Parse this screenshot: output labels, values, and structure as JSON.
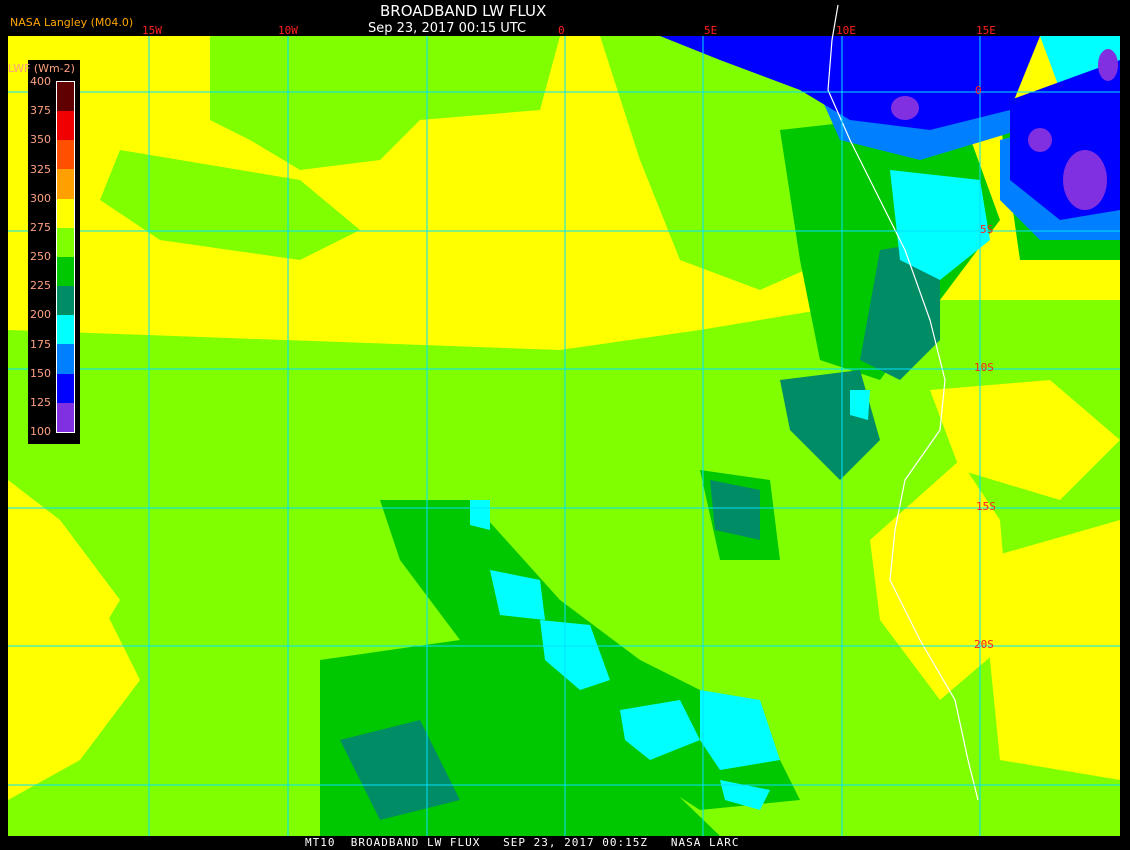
{
  "header": {
    "title": "BROADBAND LW FLUX",
    "datetime": "Sep 23, 2017 00:15 UTC",
    "source": "NASA Langley (M04.0)"
  },
  "footer": {
    "text": "MT10  BROADBAND LW FLUX   SEP 23, 2017 00:15Z   NASA LARC"
  },
  "longitude_labels": [
    "15W",
    "10W",
    "0",
    "5E",
    "10E",
    "15E"
  ],
  "latitude_labels": [
    "0",
    "5S",
    "10S",
    "15S",
    "20S"
  ],
  "colorbar": {
    "unit": "LWF (Wm-2)",
    "labels": [
      "400",
      "375",
      "350",
      "325",
      "300",
      "275",
      "250",
      "225",
      "200",
      "175",
      "150",
      "125",
      "100"
    ],
    "colors": [
      "#600000",
      "#f00000",
      "#ff5000",
      "#ffa000",
      "#ffff00",
      "#80ff00",
      "#00c800",
      "#008c64",
      "#00ffff",
      "#0080ff",
      "#0000ff",
      "#8030e0"
    ]
  },
  "map_colors": {
    "gridline": "#00e0ff",
    "coastline": "#ffffff",
    "background_flux": "#ffff00"
  }
}
